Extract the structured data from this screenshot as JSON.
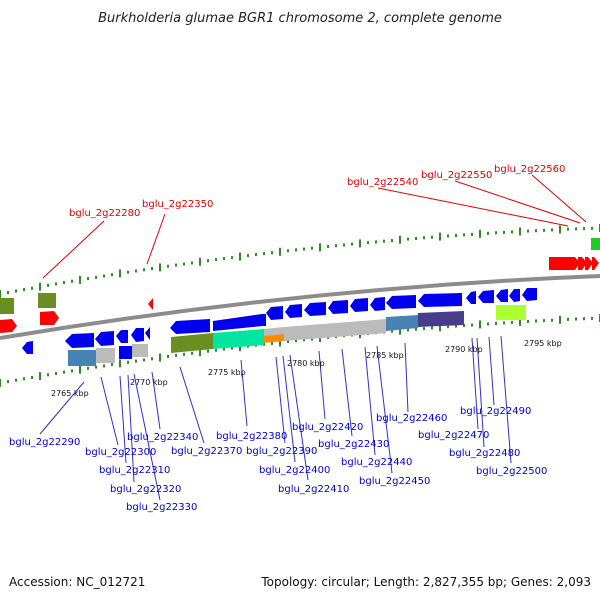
{
  "title": "Burkholderia glumae BGR1 chromosome 2, complete genome",
  "footer": {
    "accession": "Accession: NC_012721",
    "topology": "Topology: circular; Length: 2,827,355 bp; Genes: 2,093"
  },
  "colors": {
    "title": "#222222",
    "plus_gene": "#0000ee",
    "minus_gene_highlight": "#ff0000",
    "label_blue": "#0000cc",
    "label_red": "#dd0000",
    "leader_line": "#3030cc",
    "backbone": "#8c8c8c",
    "tick": "#2e8b22"
  },
  "kbp_labels": [
    "2765 kbp",
    "2770 kbp",
    "2775 kbp",
    "2780 kbp",
    "2785 kbp",
    "2790 kbp",
    "2795 kbp"
  ],
  "gene_labels_top": [
    "bglu_2g22280",
    "bglu_2g22350",
    "bglu_2g22540",
    "bglu_2g22550",
    "bglu_2g22560"
  ],
  "gene_labels_bottom": [
    "bglu_2g22290",
    "bglu_2g22300",
    "bglu_2g22310",
    "bglu_2g22320",
    "bglu_2g22330",
    "bglu_2g22340",
    "bglu_2g22370",
    "bglu_2g22380",
    "bglu_2g22390",
    "bglu_2g22400",
    "bglu_2g22410",
    "bglu_2g22420",
    "bglu_2g22430",
    "bglu_2g22440",
    "bglu_2g22450",
    "bglu_2g22460",
    "bglu_2g22470",
    "bglu_2g22480",
    "bglu_2g22490",
    "bglu_2g22500"
  ]
}
